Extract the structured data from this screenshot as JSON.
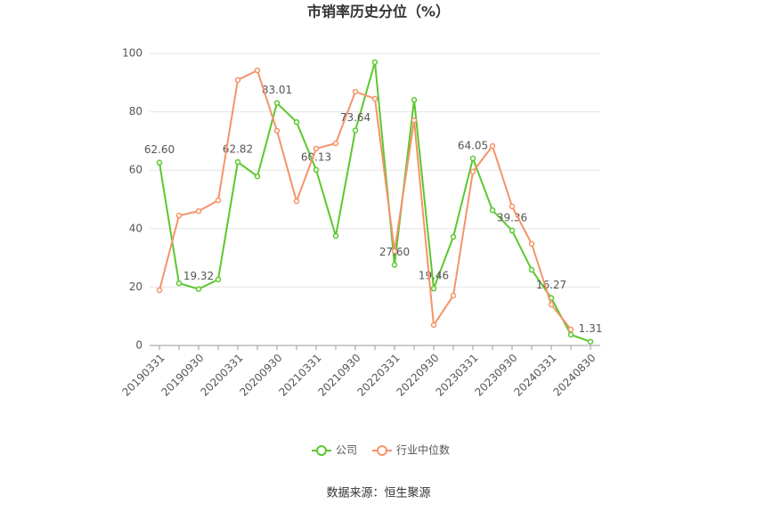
{
  "chart_data": {
    "type": "line",
    "title": "市销率历史分位（%）",
    "categories": [
      "20190331",
      null,
      "20190930",
      null,
      "20200331",
      null,
      "20200930",
      null,
      "20210331",
      null,
      "20210930",
      null,
      "20220331",
      null,
      "20220930",
      null,
      "20230331",
      null,
      "20230930",
      null,
      "20240331",
      null,
      "20240830"
    ],
    "series": [
      {
        "name": "公司",
        "color": "#5cc72e",
        "values": [
          62.6,
          21.3,
          19.32,
          22.6,
          62.82,
          57.9,
          83.01,
          76.5,
          60.13,
          37.5,
          73.64,
          97,
          27.6,
          84.1,
          19.46,
          37.2,
          64.05,
          46.3,
          39.36,
          25.9,
          16.27,
          3.7,
          1.31
        ],
        "value_labels": [
          "62.60",
          null,
          "19.32",
          null,
          "62.82",
          null,
          "83.01",
          null,
          "60.13",
          null,
          "73.64",
          null,
          "27.60",
          null,
          "19.46",
          null,
          "64.05",
          null,
          "39.36",
          null,
          "16.27",
          null,
          "1.31"
        ]
      },
      {
        "name": "行业中位数",
        "color": "#f5936a",
        "values": [
          18.9,
          44.5,
          46,
          49.7,
          90.9,
          94.2,
          73.5,
          49.4,
          67.4,
          69.2,
          86.9,
          84.5,
          32.3,
          77.1,
          7,
          17.1,
          59.5,
          68.3,
          47.6,
          34.8,
          14,
          5.5,
          null
        ]
      }
    ],
    "ylim": [
      0,
      100
    ],
    "yticks": [
      0,
      20,
      40,
      60,
      80,
      100
    ],
    "grid": true,
    "source": "数据来源：恒生聚源"
  }
}
